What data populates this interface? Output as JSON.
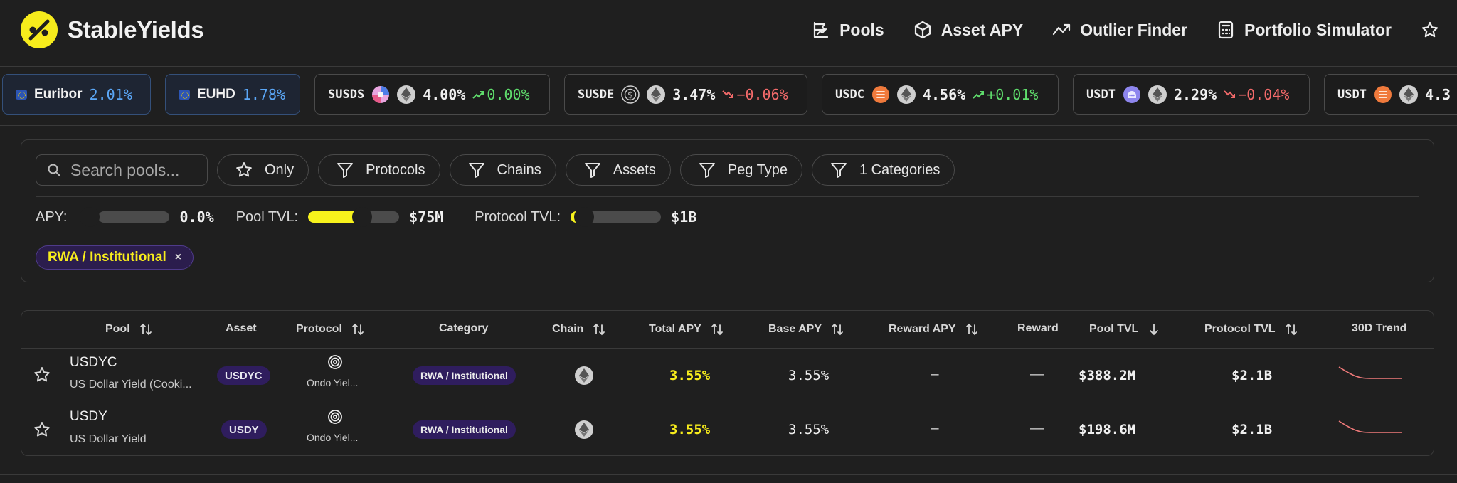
{
  "brand": {
    "name": "StableYields",
    "logo_color": "#f7ec1c"
  },
  "nav": [
    {
      "label": "Pools",
      "icon": "chart-line-icon"
    },
    {
      "label": "Asset APY",
      "icon": "cube-icon"
    },
    {
      "label": "Outlier Finder",
      "icon": "trend-icon"
    },
    {
      "label": "Portfolio Simulator",
      "icon": "calculator-icon"
    }
  ],
  "ticker": {
    "euribor": {
      "label": "Euribor",
      "value": "2.01%"
    },
    "euhd": {
      "label": "EUHD",
      "value": "1.78%"
    },
    "items": [
      {
        "symbol": "SUSDS",
        "apy": "4.00%",
        "change": "0.00%",
        "dir": "up"
      },
      {
        "symbol": "SUSDE",
        "apy": "3.47%",
        "change": "−0.06%",
        "dir": "down"
      },
      {
        "symbol": "USDC",
        "apy": "4.56%",
        "change": "+0.01%",
        "dir": "up"
      },
      {
        "symbol": "USDT",
        "apy": "2.29%",
        "change": "−0.04%",
        "dir": "down"
      },
      {
        "symbol": "USDT",
        "apy": "4.3",
        "change": "",
        "dir": ""
      }
    ]
  },
  "filters": {
    "search_placeholder": "Search pools...",
    "only": "Only",
    "protocols": "Protocols",
    "chains": "Chains",
    "assets": "Assets",
    "peg_type": "Peg Type",
    "categories": "1 Categories"
  },
  "sliders": {
    "apy": {
      "label": "APY:",
      "value": "0.0%",
      "fill": 0.0
    },
    "pool_tvl": {
      "label": "Pool TVL:",
      "value": "$75M",
      "fill": 0.62
    },
    "protocol_tvl": {
      "label": "Protocol TVL:",
      "value": "$1B",
      "fill": 0.05
    }
  },
  "active_tag": {
    "label": "RWA / Institutional",
    "close": "×"
  },
  "table": {
    "headers": {
      "pool": "Pool",
      "asset": "Asset",
      "protocol": "Protocol",
      "category": "Category",
      "chain": "Chain",
      "total_apy": "Total APY",
      "base_apy": "Base APY",
      "reward_apy": "Reward APY",
      "reward": "Reward",
      "pool_tvl": "Pool TVL",
      "protocol_tvl": "Protocol TVL",
      "trend": "30D Trend"
    },
    "rows": [
      {
        "name": "USDYC",
        "sub": "US Dollar Yield (Cooki...",
        "asset": "USDYC",
        "protocol": "Ondo Yiel...",
        "category": "RWA / Institutional",
        "total_apy": "3.55%",
        "base_apy": "3.55%",
        "reward_apy": "–",
        "reward": "—",
        "pool_tvl": "$388.2M",
        "protocol_tvl": "$2.1B"
      },
      {
        "name": "USDY",
        "sub": "US Dollar Yield",
        "asset": "USDY",
        "protocol": "Ondo Yiel...",
        "category": "RWA / Institutional",
        "total_apy": "3.55%",
        "base_apy": "3.55%",
        "reward_apy": "–",
        "reward": "—",
        "pool_tvl": "$198.6M",
        "protocol_tvl": "$2.1B"
      }
    ]
  },
  "colors": {
    "accent": "#f7ec1c",
    "up": "#5fdc6c",
    "down": "#f26a6a",
    "rate_blue": "#5ba7f7",
    "trend": "#f07a7a"
  }
}
